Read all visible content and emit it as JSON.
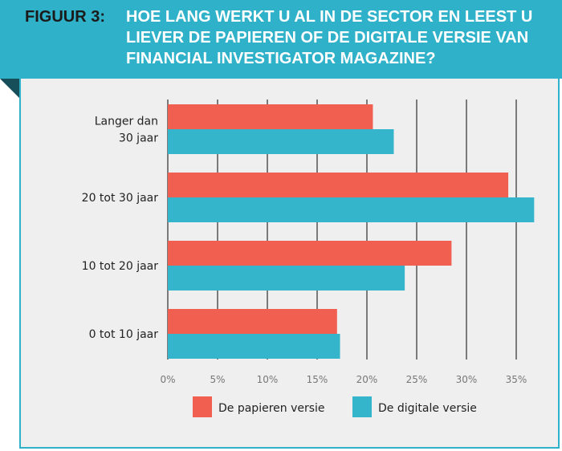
{
  "header": {
    "figure_label": "FIGUUR 3:",
    "title": "HOE LANG WERKT U AL IN DE SECTOR EN LEEST U LIEVER DE PAPIEREN OF DE DIGITALE VERSIE VAN FINANCIAL INVESTIGATOR MAGAZINE?"
  },
  "colors": {
    "banner": "#2fb1c9",
    "papieren": "#f05f50",
    "digitale": "#35b5cc"
  },
  "chart_data": {
    "type": "bar",
    "orientation": "horizontal",
    "title": "HOE LANG WERKT U AL IN DE SECTOR EN LEEST U LIEVER DE PAPIEREN OF DE DIGITALE VERSIE VAN FINANCIAL INVESTIGATOR MAGAZINE?",
    "categories": [
      [
        "Langer dan",
        "30 jaar"
      ],
      [
        "20 tot 30 jaar"
      ],
      [
        "10 tot 20 jaar"
      ],
      [
        "0 tot 10 jaar"
      ]
    ],
    "series": [
      {
        "name": "De papieren versie",
        "color": "#f05f50",
        "values": [
          20.6,
          34.2,
          28.5,
          17.0
        ]
      },
      {
        "name": "De digitale versie",
        "color": "#35b5cc",
        "values": [
          22.7,
          36.8,
          23.8,
          17.3
        ]
      }
    ],
    "xlim": [
      0,
      37
    ],
    "x_ticks": [
      0,
      5,
      10,
      15,
      20,
      25,
      30,
      35
    ],
    "x_tick_labels": [
      "0%",
      "5%",
      "10%",
      "15%",
      "20%",
      "25%",
      "30%",
      "35%"
    ],
    "grid": true,
    "legend_position": "bottom"
  }
}
